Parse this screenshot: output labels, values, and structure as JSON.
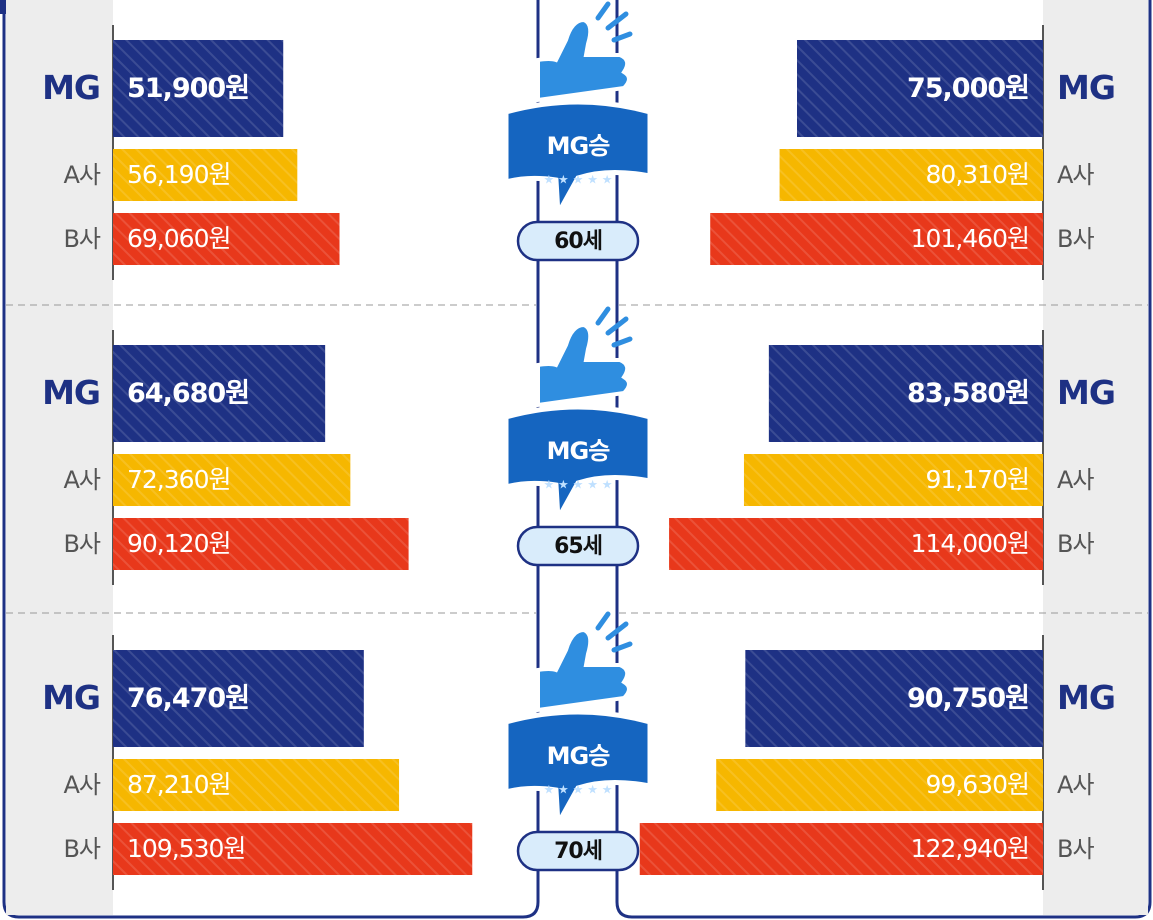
{
  "chart_data": {
    "type": "bar",
    "categories": [
      "MG",
      "A사",
      "B사"
    ],
    "colors": [
      "#1e3184",
      "#f6b700",
      "#e8381b"
    ],
    "groups": [
      "60세",
      "65세",
      "70세"
    ],
    "badge": "MG승",
    "xlim": [
      0,
      125000
    ],
    "series": [
      {
        "values": [
          [
            51900,
            56190,
            69060
          ],
          [
            64680,
            72360,
            90120
          ],
          [
            76470,
            87210,
            109530
          ]
        ],
        "value_labels": [
          [
            "51,900원",
            "56,190원",
            "69,060원"
          ],
          [
            "64,680원",
            "72,360원",
            "90,120원"
          ],
          [
            "76,470원",
            "87,210원",
            "109,530원"
          ]
        ]
      },
      {
        "values": [
          [
            75000,
            80310,
            101460
          ],
          [
            83580,
            91170,
            114000
          ],
          [
            90750,
            99630,
            122940
          ]
        ],
        "value_labels": [
          [
            "75,000원",
            "80,310원",
            "101,460원"
          ],
          [
            "83,580원",
            "91,170원",
            "114,000원"
          ],
          [
            "90,750원",
            "99,630원",
            "122,940원"
          ]
        ]
      }
    ]
  }
}
